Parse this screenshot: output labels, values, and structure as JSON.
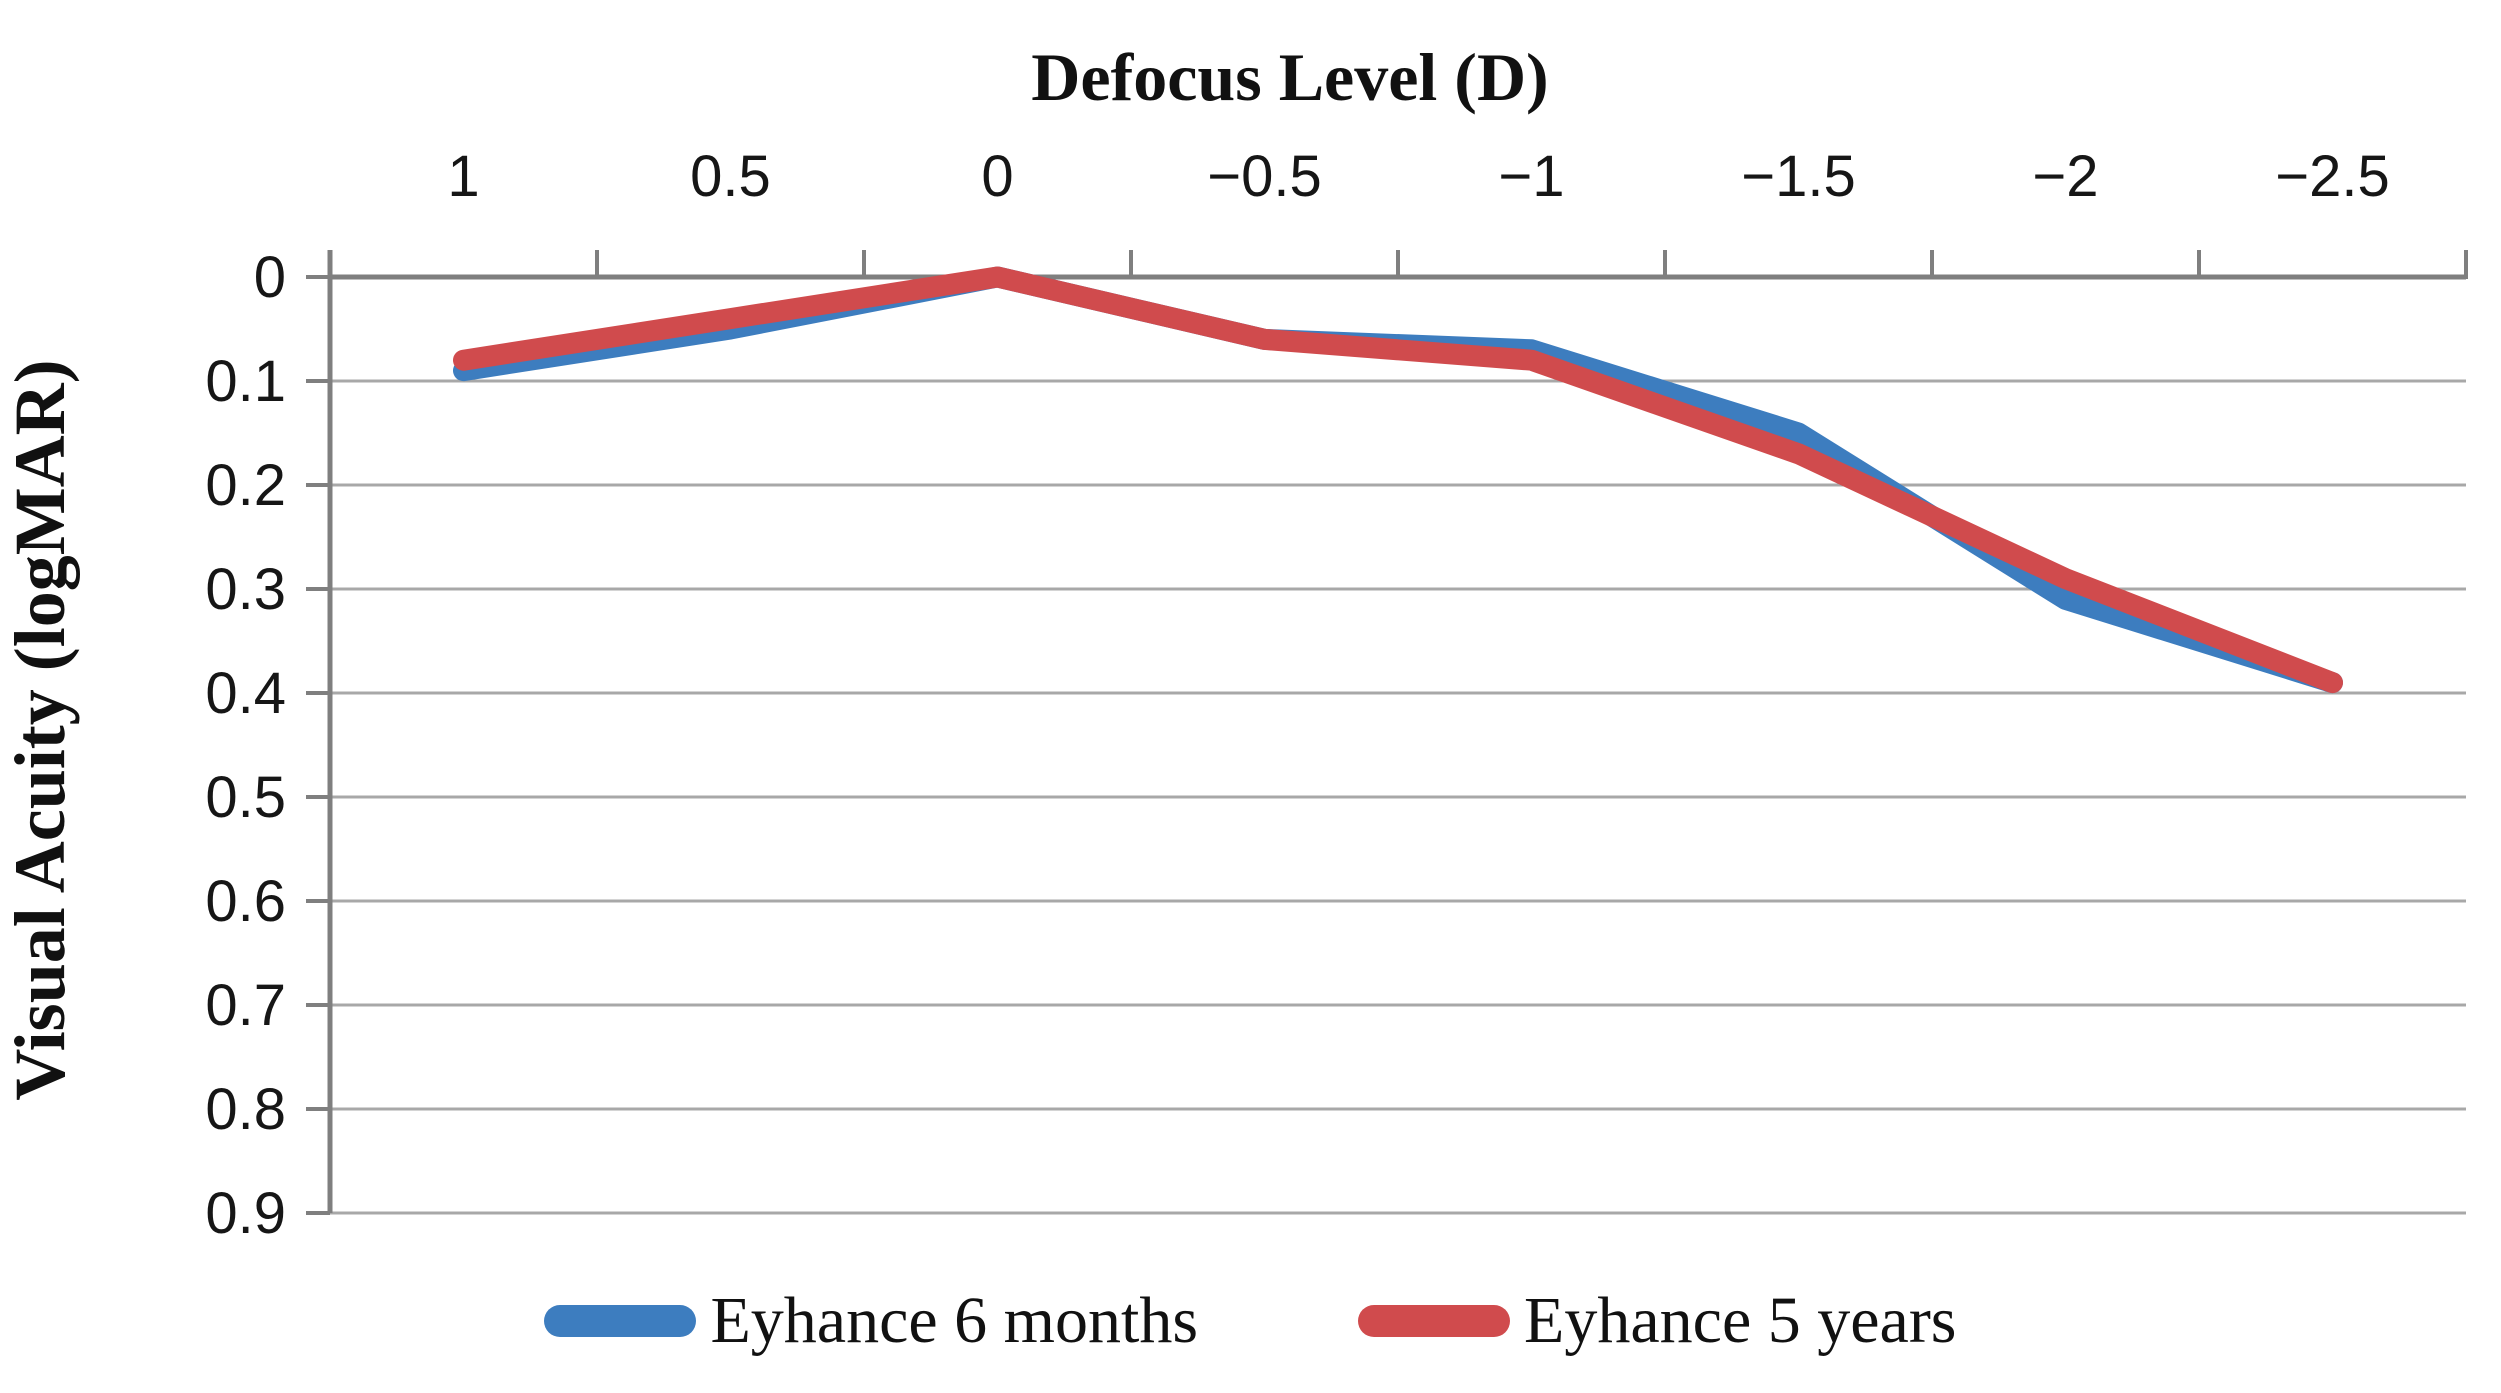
{
  "chart_data": {
    "type": "line",
    "title": "Defocus Level (D)",
    "ylabel": "Visual Acuity (logMAR)",
    "xlabel": "",
    "x_categories": [
      "1",
      "0.5",
      "0",
      "−0.5",
      "−1",
      "−1.5",
      "−2",
      "−2.5"
    ],
    "y_tick_labels": [
      "0",
      "0.1",
      "0.2",
      "0.3",
      "0.4",
      "0.5",
      "0.6",
      "0.7",
      "0.8",
      "0.9"
    ],
    "y_range": [
      0,
      0.9
    ],
    "y_axis_reversed": true,
    "grid": true,
    "legend_position": "bottom",
    "colors": {
      "grid": "#a8a8a8",
      "axis": "#7f7f7f",
      "text": "#111111"
    },
    "series": [
      {
        "name": "Eyhance 6 months",
        "color": "#3d7dbf",
        "values": [
          0.09,
          0.05,
          0.0,
          0.06,
          0.07,
          0.15,
          0.31,
          0.39
        ]
      },
      {
        "name": "Eyhance 5 years",
        "color": "#d04b4d",
        "values": [
          0.08,
          0.04,
          0.0,
          0.06,
          0.08,
          0.17,
          0.29,
          0.39
        ]
      }
    ]
  },
  "legend": {
    "items": [
      {
        "label": "Eyhance 6 months",
        "color": "#3d7dbf"
      },
      {
        "label": "Eyhance 5 years",
        "color": "#d04b4d"
      }
    ]
  }
}
